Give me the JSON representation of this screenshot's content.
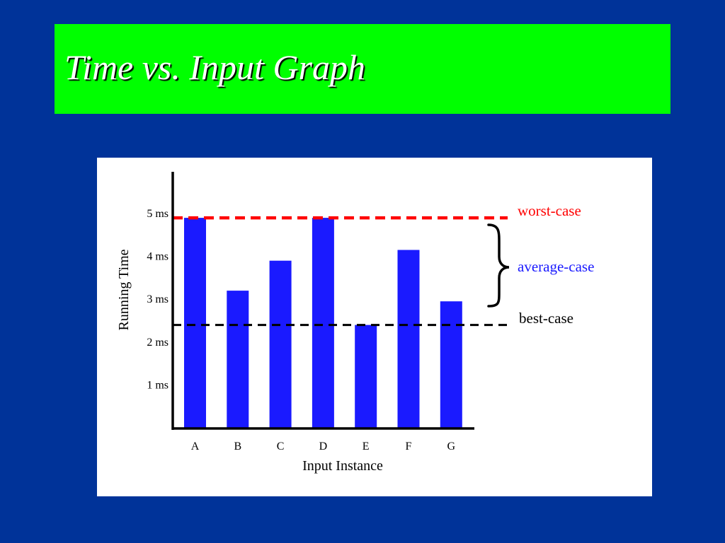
{
  "slide": {
    "title": "Time vs. Input Graph",
    "background_color": "#003399",
    "title_bar_color": "#00ff00"
  },
  "chart_data": {
    "type": "bar",
    "categories": [
      "A",
      "B",
      "C",
      "D",
      "E",
      "F",
      "G"
    ],
    "values": [
      4.9,
      3.2,
      3.9,
      4.9,
      2.4,
      4.15,
      2.95
    ],
    "bar_color": "#1a1aff",
    "xlabel": "Input Instance",
    "ylabel": "Running Time",
    "y_ticks": [
      {
        "value": 1,
        "label": "1 ms"
      },
      {
        "value": 2,
        "label": "2 ms"
      },
      {
        "value": 3,
        "label": "3 ms"
      },
      {
        "value": 4,
        "label": "4 ms"
      },
      {
        "value": 5,
        "label": "5 ms"
      }
    ],
    "ylim": [
      0,
      6
    ],
    "grid": false,
    "reference_lines": [
      {
        "label": "worst-case",
        "value": 4.9,
        "color": "#ff0000",
        "style": "dashed"
      },
      {
        "label": "best-case",
        "value": 2.4,
        "color": "#000000",
        "style": "dashed"
      }
    ],
    "annotations": [
      {
        "label": "average-case",
        "color": "#1a1aff",
        "marker": "brace"
      }
    ]
  }
}
